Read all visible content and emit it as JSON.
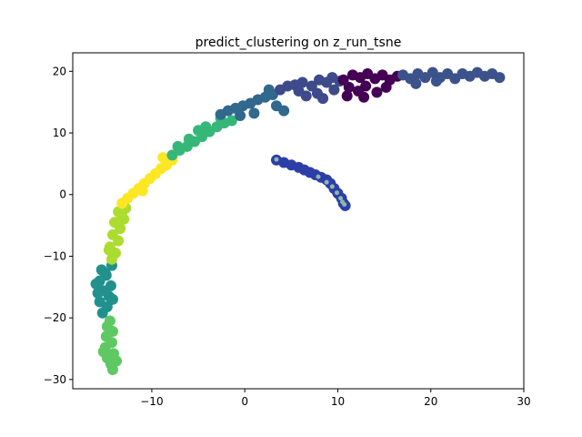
{
  "chart_data": {
    "type": "scatter",
    "title": "predict_clustering on z_run_tsne",
    "xlabel": "",
    "ylabel": "",
    "xlim": [
      -18.5,
      30
    ],
    "ylim": [
      -31.5,
      23
    ],
    "x_ticks": [
      -10,
      0,
      10,
      20,
      30
    ],
    "x_tick_labels": [
      "−10",
      "0",
      "10",
      "20",
      "30"
    ],
    "y_ticks": [
      -30,
      -20,
      -10,
      0,
      10,
      20
    ],
    "y_tick_labels": [
      "−30",
      "−20",
      "−10",
      "0",
      "10",
      "20"
    ],
    "grid": false,
    "legend": "none",
    "clusters": [
      {
        "color": "#5ec962",
        "points": [
          [
            -14.2,
            -28.4
          ],
          [
            -14.4,
            -27.5
          ],
          [
            -14.8,
            -26.5
          ],
          [
            -14.1,
            -25.8
          ],
          [
            -15.0,
            -24.8
          ],
          [
            -14.3,
            -24.0
          ],
          [
            -14.9,
            -23.0
          ],
          [
            -14.2,
            -22.2
          ],
          [
            -14.8,
            -21.4
          ],
          [
            -14.5,
            -20.5
          ],
          [
            -13.8,
            -27.0
          ],
          [
            -15.2,
            -25.5
          ]
        ]
      },
      {
        "color": "#21918c",
        "points": [
          [
            -15.3,
            -19.2
          ],
          [
            -14.8,
            -18.2
          ],
          [
            -15.6,
            -17.4
          ],
          [
            -14.6,
            -16.5
          ],
          [
            -15.2,
            -15.6
          ],
          [
            -14.4,
            -14.8
          ],
          [
            -15.6,
            -14.0
          ],
          [
            -14.9,
            -13.1
          ],
          [
            -15.4,
            -12.2
          ],
          [
            -14.3,
            -11.5
          ],
          [
            -15.8,
            -16.0
          ],
          [
            -14.2,
            -17.0
          ],
          [
            -15.0,
            -12.8
          ],
          [
            -16.0,
            -14.5
          ]
        ]
      },
      {
        "color": "#addc30",
        "points": [
          [
            -14.3,
            -10.5
          ],
          [
            -13.9,
            -9.5
          ],
          [
            -14.5,
            -8.5
          ],
          [
            -13.6,
            -7.5
          ],
          [
            -14.2,
            -6.5
          ],
          [
            -13.4,
            -5.5
          ],
          [
            -14.0,
            -4.5
          ],
          [
            -13.2,
            -3.5
          ],
          [
            -13.6,
            -2.8
          ],
          [
            -12.8,
            -2.2
          ],
          [
            -14.6,
            -9.0
          ],
          [
            -13.0,
            -4.0
          ]
        ]
      },
      {
        "color": "#fde725",
        "points": [
          [
            -13.2,
            -1.4
          ],
          [
            -12.6,
            -0.6
          ],
          [
            -12.0,
            0.2
          ],
          [
            -11.4,
            1.0
          ],
          [
            -10.8,
            1.8
          ],
          [
            -10.2,
            2.6
          ],
          [
            -9.6,
            3.4
          ],
          [
            -9.0,
            4.2
          ],
          [
            -8.4,
            4.8
          ],
          [
            -7.8,
            5.6
          ],
          [
            -8.8,
            6.0
          ],
          [
            -11.0,
            0.6
          ]
        ]
      },
      {
        "color": "#35b779",
        "points": [
          [
            -7.8,
            6.4
          ],
          [
            -7.0,
            7.2
          ],
          [
            -6.2,
            7.8
          ],
          [
            -5.4,
            8.6
          ],
          [
            -4.6,
            9.4
          ],
          [
            -3.8,
            10.2
          ],
          [
            -3.0,
            11.0
          ],
          [
            -2.2,
            11.6
          ],
          [
            -1.4,
            12.0
          ],
          [
            -2.6,
            12.4
          ],
          [
            -4.2,
            11.0
          ],
          [
            -6.0,
            9.0
          ],
          [
            -7.2,
            7.8
          ],
          [
            -5.0,
            10.4
          ]
        ]
      },
      {
        "color": "#31688e",
        "points": [
          [
            -2.6,
            13.0
          ],
          [
            -1.8,
            13.6
          ],
          [
            -1.0,
            14.0
          ],
          [
            -0.2,
            14.4
          ],
          [
            0.6,
            14.8
          ],
          [
            1.4,
            15.4
          ],
          [
            2.2,
            15.8
          ],
          [
            3.0,
            16.2
          ],
          [
            2.6,
            17.0
          ],
          [
            1.0,
            13.2
          ],
          [
            -0.5,
            12.8
          ],
          [
            4.2,
            13.6
          ],
          [
            3.4,
            14.4
          ]
        ]
      },
      {
        "color": "#3e4a89",
        "points": [
          [
            3.8,
            17.0
          ],
          [
            4.6,
            17.6
          ],
          [
            5.4,
            17.8
          ],
          [
            6.2,
            18.2
          ],
          [
            7.2,
            17.6
          ],
          [
            8.0,
            18.6
          ],
          [
            8.8,
            18.2
          ],
          [
            9.6,
            17.0
          ],
          [
            7.8,
            16.4
          ],
          [
            6.6,
            16.0
          ],
          [
            5.8,
            16.8
          ],
          [
            8.4,
            15.6
          ],
          [
            9.4,
            19.0
          ],
          [
            10.2,
            18.4
          ]
        ]
      },
      {
        "color": "#440154",
        "points": [
          [
            10.6,
            18.6
          ],
          [
            11.6,
            19.4
          ],
          [
            12.4,
            19.0
          ],
          [
            13.2,
            19.6
          ],
          [
            14.0,
            18.8
          ],
          [
            14.8,
            19.4
          ],
          [
            15.6,
            18.6
          ],
          [
            16.4,
            19.2
          ],
          [
            11.2,
            17.4
          ],
          [
            12.2,
            16.8
          ],
          [
            13.0,
            17.6
          ],
          [
            14.2,
            16.6
          ],
          [
            15.2,
            17.4
          ],
          [
            11.0,
            16.0
          ],
          [
            12.8,
            15.8
          ]
        ]
      },
      {
        "color": "#3b528b",
        "points": [
          [
            17.0,
            19.4
          ],
          [
            17.8,
            18.8
          ],
          [
            18.6,
            19.6
          ],
          [
            19.4,
            19.0
          ],
          [
            20.2,
            19.8
          ],
          [
            21.0,
            19.0
          ],
          [
            21.8,
            19.6
          ],
          [
            22.6,
            18.8
          ],
          [
            23.4,
            19.6
          ],
          [
            24.2,
            19.2
          ],
          [
            25.0,
            19.8
          ],
          [
            25.8,
            19.2
          ],
          [
            26.6,
            19.6
          ],
          [
            27.4,
            19.0
          ],
          [
            18.4,
            18.0
          ],
          [
            20.6,
            18.4
          ]
        ]
      },
      {
        "color": "#2c3fa8",
        "points": [
          [
            3.4,
            5.6
          ],
          [
            4.2,
            5.2
          ],
          [
            5.0,
            4.8
          ],
          [
            5.8,
            4.4
          ],
          [
            6.4,
            4.0
          ],
          [
            7.0,
            3.6
          ],
          [
            7.6,
            3.2
          ],
          [
            8.2,
            2.8
          ],
          [
            8.8,
            2.4
          ],
          [
            9.2,
            1.8
          ],
          [
            9.6,
            1.0
          ],
          [
            10.0,
            0.2
          ],
          [
            10.4,
            -0.6
          ],
          [
            10.6,
            -1.4
          ],
          [
            10.8,
            -1.8
          ]
        ]
      },
      {
        "color": "#8fb8a8",
        "points": [
          [
            3.4,
            5.7
          ],
          [
            7.9,
            2.9
          ],
          [
            8.8,
            2.0
          ],
          [
            9.4,
            1.3
          ],
          [
            9.9,
            0.3
          ],
          [
            10.3,
            -0.6
          ],
          [
            10.5,
            -1.2
          ],
          [
            10.7,
            -1.6
          ]
        ]
      }
    ]
  }
}
